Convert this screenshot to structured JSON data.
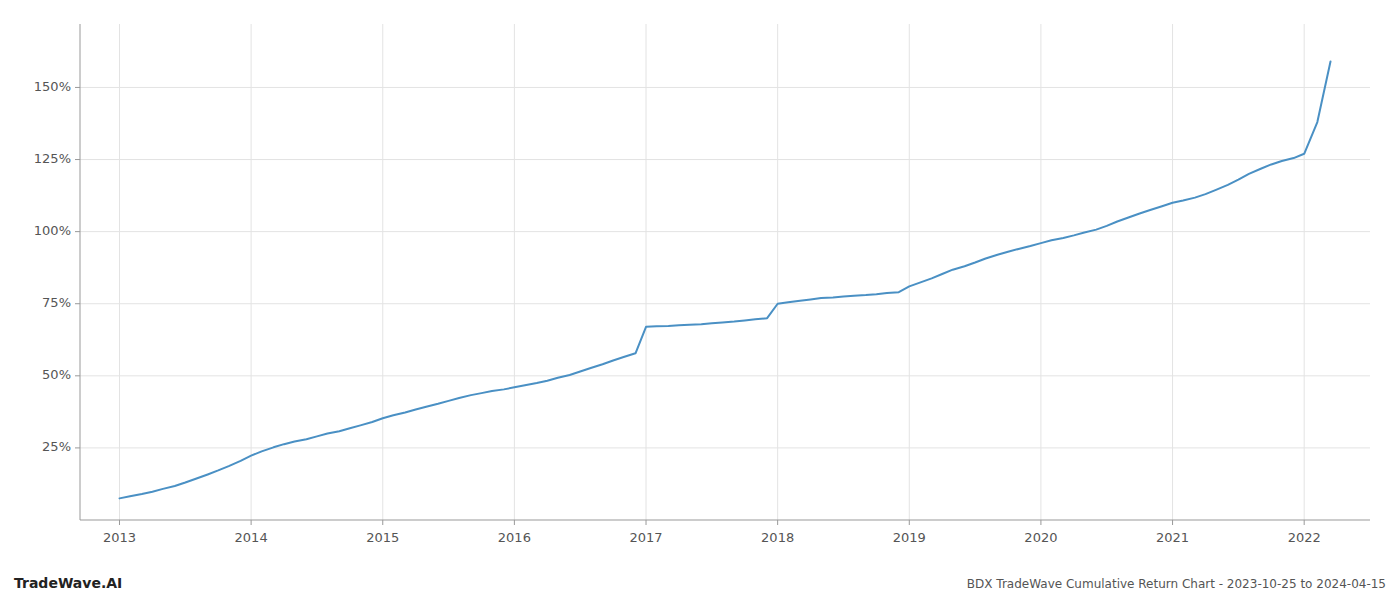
{
  "chart_data": {
    "type": "line",
    "title": "BDX TradeWave Cumulative Return Chart - 2023-10-25 to 2024-04-15",
    "annotations": [
      "TradeWave.AI"
    ],
    "color": "#4a90c4",
    "grid": true,
    "xlim": [
      2012.7,
      2022.5
    ],
    "ylim": [
      0.0,
      1.72
    ],
    "xticks": [
      2013,
      2014,
      2015,
      2016,
      2017,
      2018,
      2019,
      2020,
      2021,
      2022
    ],
    "yticks": [
      {
        "value": 0.25,
        "label": "25%"
      },
      {
        "value": 0.5,
        "label": "50%"
      },
      {
        "value": 0.75,
        "label": "75%"
      },
      {
        "value": 1.0,
        "label": "100%"
      },
      {
        "value": 1.25,
        "label": "125%"
      },
      {
        "value": 1.5,
        "label": "150%"
      }
    ],
    "x": [
      2013.0,
      2013.08,
      2013.17,
      2013.25,
      2013.33,
      2013.42,
      2013.5,
      2013.58,
      2013.67,
      2013.75,
      2013.83,
      2013.92,
      2014.0,
      2014.08,
      2014.17,
      2014.25,
      2014.33,
      2014.42,
      2014.5,
      2014.58,
      2014.67,
      2014.75,
      2014.83,
      2014.92,
      2015.0,
      2015.08,
      2015.17,
      2015.25,
      2015.33,
      2015.42,
      2015.5,
      2015.58,
      2015.67,
      2015.75,
      2015.83,
      2015.92,
      2016.0,
      2016.08,
      2016.17,
      2016.25,
      2016.33,
      2016.42,
      2016.5,
      2016.58,
      2016.67,
      2016.75,
      2016.83,
      2016.92,
      2017.0,
      2017.08,
      2017.17,
      2017.25,
      2017.33,
      2017.42,
      2017.5,
      2017.58,
      2017.67,
      2017.75,
      2017.83,
      2017.92,
      2018.0,
      2018.08,
      2018.17,
      2018.25,
      2018.33,
      2018.42,
      2018.5,
      2018.58,
      2018.67,
      2018.75,
      2018.83,
      2018.92,
      2019.0,
      2019.08,
      2019.17,
      2019.25,
      2019.33,
      2019.42,
      2019.5,
      2019.58,
      2019.67,
      2019.75,
      2019.83,
      2019.92,
      2020.0,
      2020.08,
      2020.17,
      2020.25,
      2020.33,
      2020.42,
      2020.5,
      2020.58,
      2020.67,
      2020.75,
      2020.83,
      2020.92,
      2021.0,
      2021.08,
      2021.17,
      2021.25,
      2021.33,
      2021.42,
      2021.5,
      2021.58,
      2021.67,
      2021.75,
      2021.83,
      2021.92,
      2022.0,
      2022.1,
      2022.2
    ],
    "values": [
      0.075,
      0.082,
      0.09,
      0.098,
      0.108,
      0.118,
      0.13,
      0.143,
      0.158,
      0.172,
      0.187,
      0.205,
      0.223,
      0.238,
      0.252,
      0.263,
      0.272,
      0.28,
      0.29,
      0.3,
      0.308,
      0.318,
      0.328,
      0.34,
      0.353,
      0.363,
      0.373,
      0.383,
      0.393,
      0.403,
      0.413,
      0.423,
      0.433,
      0.44,
      0.447,
      0.453,
      0.46,
      0.467,
      0.475,
      0.483,
      0.493,
      0.503,
      0.515,
      0.527,
      0.54,
      0.553,
      0.565,
      0.578,
      0.67,
      0.672,
      0.673,
      0.675,
      0.677,
      0.679,
      0.682,
      0.685,
      0.688,
      0.692,
      0.696,
      0.7,
      0.75,
      0.755,
      0.76,
      0.765,
      0.77,
      0.772,
      0.775,
      0.778,
      0.78,
      0.783,
      0.787,
      0.79,
      0.81,
      0.823,
      0.838,
      0.853,
      0.868,
      0.88,
      0.893,
      0.907,
      0.92,
      0.93,
      0.94,
      0.95,
      0.96,
      0.97,
      0.978,
      0.987,
      0.997,
      1.007,
      1.02,
      1.035,
      1.05,
      1.063,
      1.075,
      1.088,
      1.1,
      1.108,
      1.118,
      1.13,
      1.145,
      1.162,
      1.18,
      1.2,
      1.218,
      1.233,
      1.245,
      1.255,
      1.27,
      1.38,
      1.59
    ]
  }
}
